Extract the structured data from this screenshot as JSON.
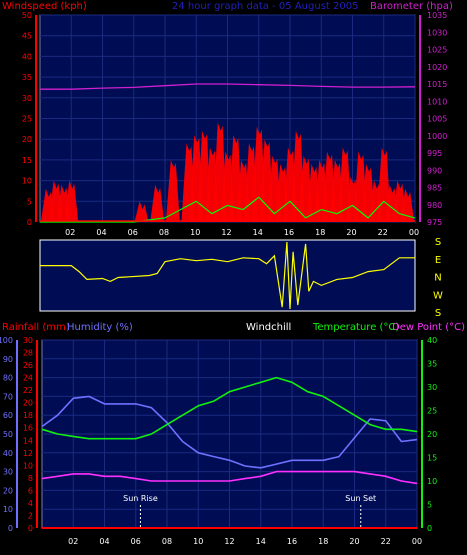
{
  "colors": {
    "panel_bg": "#000d55",
    "grid": "#1b2a80",
    "frame": "#7d7d9a",
    "wind_fill": "#ff0000",
    "gust": "#ff3030",
    "avg_wind": "#00ff00",
    "wind_white": "#ffffff",
    "barometer": "#d020d0",
    "direction": "#ffff00",
    "humidity": "#7070ff",
    "temperature": "#10f010",
    "dewpoint": "#ff30ff",
    "rainfall": "#ff0000",
    "title_text": "#2020c0",
    "red_text": "#ff0000",
    "white_text": "#ffffff"
  },
  "chart_data": [
    {
      "type": "area",
      "title": "24 hour graph data - 05 August 2005",
      "y_left_label": "Windspeed (kph)",
      "y_right_label": "Barometer (hpa)",
      "x_ticks": [
        "02",
        "04",
        "06",
        "08",
        "10",
        "12",
        "14",
        "16",
        "18",
        "20",
        "22",
        "00"
      ],
      "y_left_ticks": [
        "0",
        "5",
        "10",
        "15",
        "20",
        "25",
        "30",
        "35",
        "40",
        "45",
        "50"
      ],
      "y_left_range": [
        0,
        50
      ],
      "y_right_ticks": [
        "975",
        "980",
        "985",
        "990",
        "995",
        "1000",
        "1005",
        "1010",
        "1015",
        "1020",
        "1025",
        "1030",
        "1035"
      ],
      "y_right_range": [
        975,
        1035
      ],
      "x_range_hours": [
        0,
        24
      ],
      "grid": true,
      "series": [
        {
          "key": "barometer",
          "x": [
            0,
            2,
            4,
            6,
            8,
            10,
            12,
            14,
            16,
            18,
            20,
            22,
            24
          ],
          "values": [
            1013.5,
            1013.5,
            1013.8,
            1014.0,
            1014.5,
            1015.0,
            1015.0,
            1014.8,
            1014.6,
            1014.3,
            1014.1,
            1014.1,
            1014.2
          ]
        },
        {
          "key": "wind_peaks",
          "x": [
            0.5,
            1.0,
            1.5,
            2.0,
            6.5,
            7.5,
            8.5,
            9.5,
            10.0,
            10.5,
            11.0,
            11.5,
            12.0,
            12.5,
            13.0,
            13.5,
            14.0,
            14.5,
            15.0,
            15.5,
            16.0,
            16.5,
            17.0,
            17.5,
            18.0,
            18.5,
            19.0,
            19.5,
            20.0,
            20.5,
            21.0,
            21.5,
            22.0,
            22.5,
            23.0,
            23.5
          ],
          "values": [
            8,
            10,
            9,
            10,
            5,
            9,
            15,
            19,
            21,
            22,
            18,
            24,
            17,
            21,
            15,
            19,
            23,
            20,
            16,
            14,
            18,
            22,
            16,
            14,
            15,
            17,
            15,
            18,
            11,
            17,
            14,
            10,
            18,
            9,
            10,
            8
          ]
        },
        {
          "key": "avg_wind",
          "x": [
            0,
            2,
            6,
            8,
            9,
            10,
            11,
            12,
            13,
            14,
            15,
            16,
            17,
            18,
            19,
            20,
            21,
            22,
            23,
            24
          ],
          "values": [
            0,
            0,
            0,
            1,
            3,
            5,
            2,
            4,
            3,
            6,
            2,
            5,
            1,
            3,
            2,
            4,
            1,
            5,
            2,
            1
          ]
        }
      ]
    },
    {
      "type": "line",
      "x_range_hours": [
        0,
        24
      ],
      "y_right_ticks": [
        "S",
        "E",
        "N",
        "W",
        "S"
      ],
      "series": [
        {
          "key": "direction",
          "x": [
            0,
            2,
            2.5,
            3.0,
            4.0,
            4.5,
            5.0,
            7.0,
            7.5,
            8.0,
            9.0,
            10.0,
            11.0,
            12.0,
            13.0,
            14.0,
            14.5,
            15.0,
            15.5,
            15.8,
            16.0,
            16.2,
            16.5,
            17.0,
            17.2,
            17.5,
            18.0,
            19.0,
            20.0,
            21.0,
            22.0,
            23.0,
            24.0
          ],
          "values": [
            230,
            230,
            200,
            160,
            165,
            150,
            170,
            180,
            190,
            250,
            265,
            255,
            262,
            250,
            270,
            265,
            240,
            280,
            20,
            350,
            10,
            300,
            30,
            340,
            100,
            150,
            130,
            160,
            170,
            200,
            210,
            270,
            270
          ]
        }
      ]
    },
    {
      "type": "line",
      "y_left1_label": "Rainfall (mm)",
      "y_left2_label": "Humidity (%)",
      "windchill_label": "Windchill",
      "temperature_label": "Temperature (°C)",
      "dewpoint_label": "Dew Point (°C)",
      "x_ticks": [
        "02",
        "04",
        "06",
        "08",
        "10",
        "12",
        "14",
        "16",
        "18",
        "20",
        "22",
        "00"
      ],
      "humidity_ticks": [
        "0",
        "10",
        "20",
        "30",
        "40",
        "50",
        "60",
        "70",
        "80",
        "90",
        "100"
      ],
      "humidity_range": [
        0,
        100
      ],
      "rain_ticks": [
        "0",
        "2",
        "4",
        "6",
        "8",
        "10",
        "12",
        "14",
        "16",
        "18",
        "20",
        "22",
        "24",
        "26",
        "28",
        "30"
      ],
      "rain_range": [
        0,
        30
      ],
      "temp_ticks": [
        "0",
        "5",
        "10",
        "15",
        "20",
        "25",
        "30",
        "35",
        "40"
      ],
      "temp_range": [
        0,
        40
      ],
      "x_range_hours": [
        0,
        24
      ],
      "annotations": [
        {
          "text": "Sun Rise",
          "x": 6.3
        },
        {
          "text": "Sun Set",
          "x": 20.4
        }
      ],
      "series": [
        {
          "key": "humidity",
          "x": [
            0,
            1,
            2,
            3,
            4,
            5,
            6,
            7,
            8,
            9,
            10,
            11,
            12,
            13,
            14,
            15,
            16,
            17,
            18,
            19,
            20,
            21,
            22,
            23,
            24
          ],
          "values": [
            54,
            60,
            69,
            70,
            66,
            66,
            66,
            64,
            56,
            46,
            40,
            38,
            36,
            33,
            32,
            34,
            36,
            36,
            36,
            38,
            48,
            58,
            57,
            46,
            47
          ]
        },
        {
          "key": "temperature",
          "x": [
            0,
            1,
            2,
            3,
            4,
            5,
            6,
            7,
            8,
            9,
            10,
            11,
            12,
            13,
            14,
            15,
            16,
            17,
            18,
            19,
            20,
            21,
            22,
            23,
            24
          ],
          "values": [
            21,
            20,
            19.5,
            19,
            19,
            19,
            19,
            20,
            22,
            24,
            26,
            27,
            29,
            30,
            31,
            32,
            31,
            29,
            28,
            26,
            24,
            22,
            21,
            21,
            20.5
          ]
        },
        {
          "key": "dewpoint",
          "x": [
            0,
            1,
            2,
            3,
            4,
            5,
            6,
            7,
            8,
            9,
            10,
            11,
            12,
            13,
            14,
            15,
            16,
            17,
            18,
            19,
            20,
            21,
            22,
            23,
            24
          ],
          "values": [
            10.5,
            11,
            11.5,
            11.5,
            11,
            11,
            10.5,
            10,
            10,
            10,
            10,
            10,
            10,
            10.5,
            11,
            12,
            12,
            12,
            12,
            12,
            12,
            11.5,
            11,
            10,
            9.5
          ]
        },
        {
          "key": "rainfall",
          "x": [
            0,
            24
          ],
          "values": [
            0,
            0
          ]
        }
      ]
    }
  ]
}
